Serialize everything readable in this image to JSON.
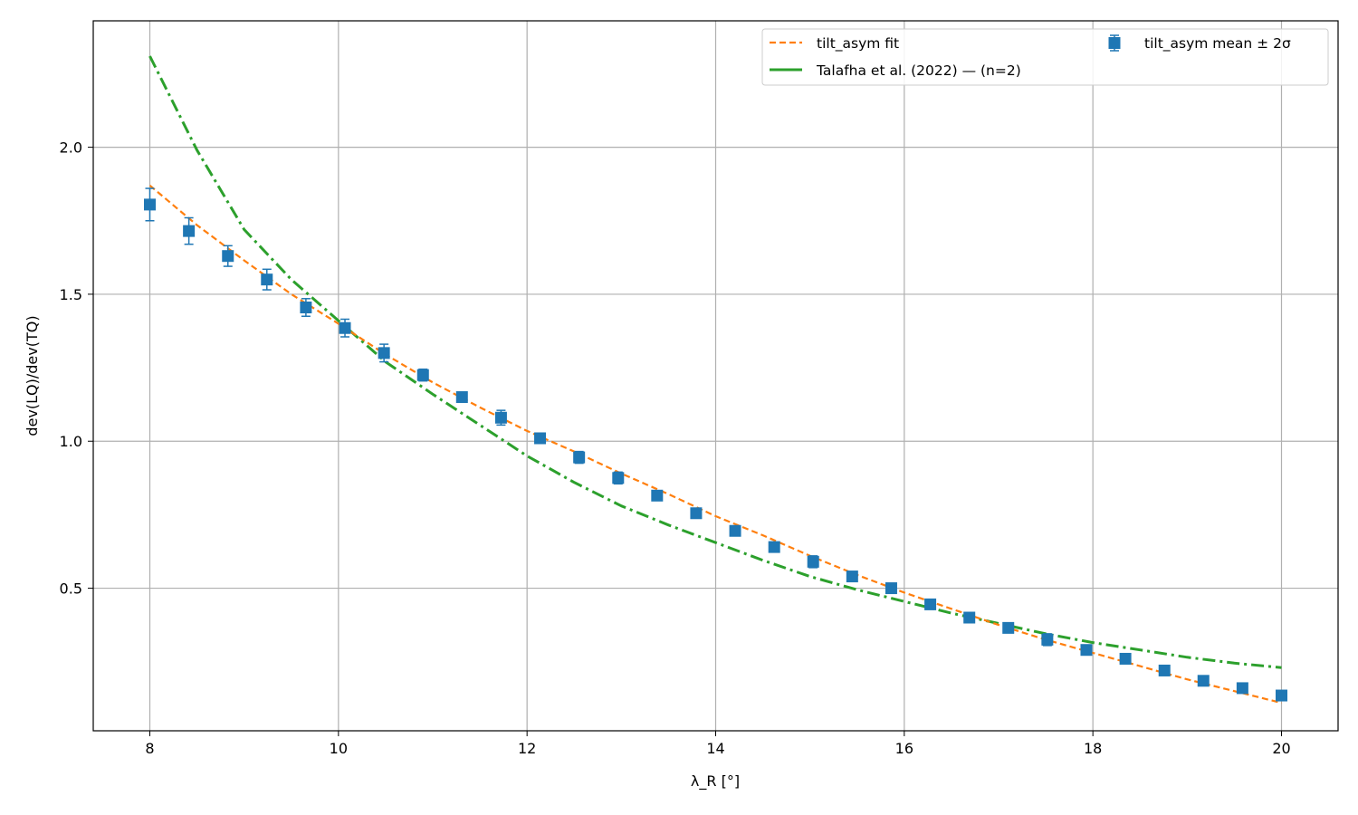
{
  "chart_data": {
    "type": "line",
    "xlabel": "λ_R [°]",
    "ylabel": "dev(LQ)/dev(TQ)",
    "xlim": [
      7.4,
      20.6
    ],
    "ylim": [
      0.015,
      2.43
    ],
    "xticks": [
      8,
      10,
      12,
      14,
      16,
      18,
      20
    ],
    "xtick_labels": [
      "8",
      "10",
      "12",
      "14",
      "16",
      "18",
      "20"
    ],
    "yticks": [
      0.5,
      1.0,
      1.5,
      2.0
    ],
    "ytick_labels": [
      "0.5",
      "1.0",
      "1.5",
      "2.0"
    ],
    "grid": true,
    "legend_position": "top-right",
    "colors": {
      "fit": "#ff7f0e",
      "talafha": "#2ca02c",
      "mean": "#1f77b4",
      "grid": "#b0b0b0"
    },
    "series": [
      {
        "name": "tilt_asym fit",
        "kind": "line",
        "style": "dashed",
        "x": [
          8.0,
          8.5,
          9.0,
          9.5,
          10.0,
          10.5,
          11.0,
          11.5,
          12.0,
          12.5,
          13.0,
          13.5,
          14.0,
          14.5,
          15.0,
          15.5,
          16.0,
          16.5,
          17.0,
          17.5,
          18.0,
          18.5,
          19.0,
          19.5,
          20.0
        ],
        "y": [
          1.87,
          1.735,
          1.615,
          1.5,
          1.4,
          1.295,
          1.2,
          1.115,
          1.035,
          0.965,
          0.89,
          0.82,
          0.745,
          0.68,
          0.61,
          0.545,
          0.485,
          0.43,
          0.375,
          0.325,
          0.28,
          0.235,
          0.19,
          0.15,
          0.11
        ]
      },
      {
        "name": "Talafha et al. (2022) — (n=2)",
        "kind": "line",
        "style": "dashdot",
        "x": [
          8.0,
          8.5,
          9.0,
          9.5,
          10.0,
          10.5,
          11.0,
          11.5,
          12.0,
          12.5,
          13.0,
          13.5,
          14.0,
          14.5,
          15.0,
          15.5,
          16.0,
          16.5,
          17.0,
          17.5,
          18.0,
          18.5,
          19.0,
          19.5,
          20.0
        ],
        "y": [
          2.31,
          1.99,
          1.72,
          1.55,
          1.41,
          1.27,
          1.16,
          1.055,
          0.95,
          0.86,
          0.78,
          0.715,
          0.655,
          0.595,
          0.54,
          0.495,
          0.455,
          0.415,
          0.38,
          0.345,
          0.315,
          0.29,
          0.265,
          0.245,
          0.23
        ]
      },
      {
        "name": "tilt_asym mean ± 2σ",
        "kind": "errorbar",
        "x": [
          8.0,
          8.414,
          8.828,
          9.241,
          9.655,
          10.069,
          10.483,
          10.897,
          11.31,
          11.724,
          12.138,
          12.552,
          12.966,
          13.379,
          13.793,
          14.207,
          14.621,
          15.034,
          15.448,
          15.862,
          16.276,
          16.69,
          17.103,
          17.517,
          17.931,
          18.345,
          18.759,
          19.172,
          19.586,
          20.0
        ],
        "y": [
          1.805,
          1.715,
          1.63,
          1.55,
          1.455,
          1.385,
          1.3,
          1.225,
          1.15,
          1.08,
          1.01,
          0.945,
          0.875,
          0.815,
          0.755,
          0.695,
          0.64,
          0.59,
          0.54,
          0.5,
          0.445,
          0.4,
          0.365,
          0.325,
          0.29,
          0.26,
          0.22,
          0.185,
          0.16,
          0.135
        ],
        "err": [
          0.055,
          0.045,
          0.035,
          0.035,
          0.03,
          0.03,
          0.03,
          0.02,
          0.015,
          0.025,
          0.015,
          0.02,
          0.02,
          0.015,
          0.015,
          0.015,
          0.015,
          0.02,
          0.01,
          0.01,
          0.01,
          0.01,
          0.01,
          0.02,
          0.01,
          0.01,
          0.01,
          0.01,
          0.01,
          0.01
        ]
      }
    ]
  }
}
